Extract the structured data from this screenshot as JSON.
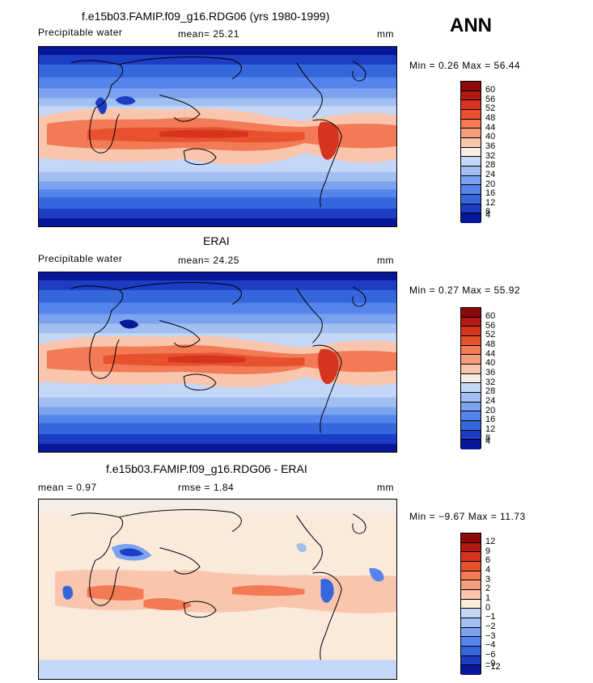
{
  "season": "ANN",
  "panels": [
    {
      "title": "f.e15b03.FAMIP.f09_g16.RDG06 (yrs 1980-1999)",
      "left_label": "Precipitable water",
      "mid_label": "mean=  25.21",
      "units": "mm",
      "minmax": "Min =   0.26 Max =  56.44",
      "legend": [
        "60",
        "56",
        "52",
        "48",
        "44",
        "40",
        "36",
        "32",
        "28",
        "24",
        "20",
        "16",
        "12",
        "8",
        "4"
      ],
      "colors": [
        "#8c0a0a",
        "#b31a14",
        "#d6341f",
        "#e8512e",
        "#f27a55",
        "#f59c7d",
        "#f9c5ad",
        "#f5ede6",
        "#c5d7f7",
        "#a2bff2",
        "#7ba2ee",
        "#5585ea",
        "#3666dc",
        "#1c3dc4",
        "#08169a"
      ]
    },
    {
      "title": "ERAI",
      "left_label": "Precipitable water",
      "mid_label": "mean=  24.25",
      "units": "mm",
      "minmax": "Min =   0.27 Max =  55.92",
      "legend": [
        "60",
        "56",
        "52",
        "48",
        "44",
        "40",
        "36",
        "32",
        "28",
        "24",
        "20",
        "16",
        "12",
        "8",
        "4"
      ],
      "colors": [
        "#8c0a0a",
        "#b31a14",
        "#d6341f",
        "#e8512e",
        "#f27a55",
        "#f59c7d",
        "#f9c5ad",
        "#f5ede6",
        "#c5d7f7",
        "#a2bff2",
        "#7ba2ee",
        "#5585ea",
        "#3666dc",
        "#1c3dc4",
        "#08169a"
      ]
    },
    {
      "title": "f.e15b03.FAMIP.f09_g16.RDG06 - ERAI",
      "left_label": "mean =   0.97",
      "mid_label": "rmse =   1.84",
      "units": "mm",
      "minmax": "Min =  −9.67 Max =  11.73",
      "legend": [
        "12",
        "9",
        "6",
        "4",
        "3",
        "2",
        "1",
        "0",
        "−1",
        "−2",
        "−3",
        "−4",
        "−6",
        "−9",
        "−12"
      ],
      "colors": [
        "#8c0a0a",
        "#b31a14",
        "#d6341f",
        "#e8512e",
        "#f27a55",
        "#f59c7d",
        "#f9c5ad",
        "#faeadb",
        "#c5d7f7",
        "#a2bff2",
        "#7ba2ee",
        "#5585ea",
        "#3666dc",
        "#1c3dc4",
        "#08169a"
      ]
    }
  ]
}
